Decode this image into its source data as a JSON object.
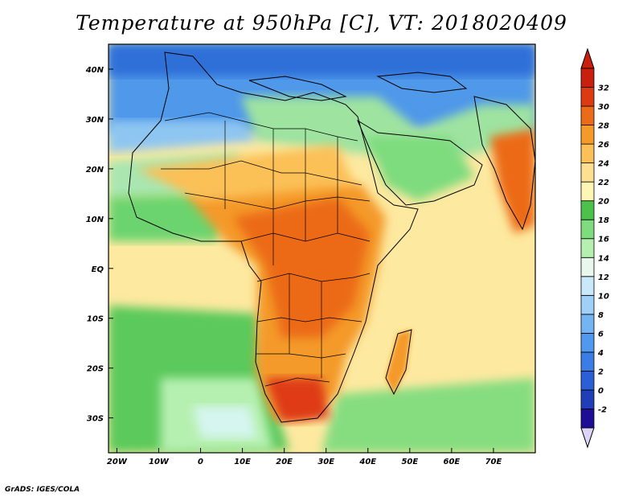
{
  "title": "Temperature at 950hPa [C], VT: 2018020409",
  "credit": "GrADS: IGES/COLA",
  "map": {
    "lon_range": [
      -22,
      80
    ],
    "lat_range": [
      -37,
      45
    ],
    "x_ticks": [
      "20W",
      "10W",
      "0",
      "10E",
      "20E",
      "30E",
      "40E",
      "50E",
      "60E",
      "70E"
    ],
    "x_tick_values": [
      -20,
      -10,
      0,
      10,
      20,
      30,
      40,
      50,
      60,
      70
    ],
    "y_ticks": [
      "40N",
      "30N",
      "20N",
      "10N",
      "EQ",
      "10S",
      "20S",
      "30S"
    ],
    "y_tick_values": [
      40,
      30,
      20,
      10,
      0,
      -10,
      -20,
      -30
    ]
  },
  "colorbar": {
    "labels": [
      "-2",
      "0",
      "2",
      "4",
      "6",
      "8",
      "10",
      "12",
      "14",
      "16",
      "18",
      "20",
      "22",
      "24",
      "26",
      "28",
      "30",
      "32"
    ],
    "colors": [
      "#1e0e96",
      "#1f3fb8",
      "#2a5fd6",
      "#3a7de6",
      "#5099ee",
      "#75b4f3",
      "#9fd0f7",
      "#c9e8fa",
      "#e8f8ec",
      "#b6f0b0",
      "#7edc7e",
      "#4cc14c",
      "#fdf6b4",
      "#fde08f",
      "#fbc057",
      "#f49a2b",
      "#ec6b18",
      "#de3a12",
      "#c81f0e"
    ],
    "under_color": "#ddd4fa"
  }
}
